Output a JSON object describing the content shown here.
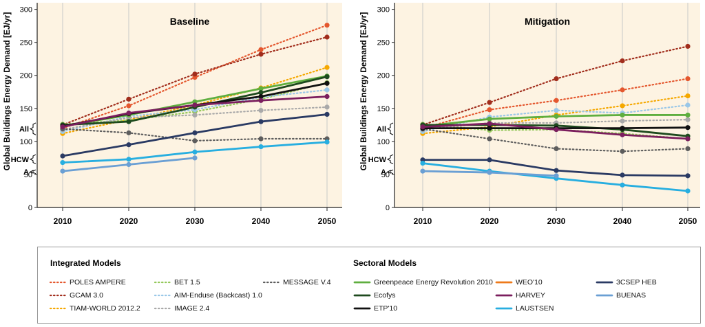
{
  "chart_data": [
    {
      "type": "line",
      "title": "Baseline",
      "ylabel": "Global Buildings Energy Demand [EJ/yr]",
      "ylim": [
        0,
        310
      ],
      "x": [
        2010,
        2020,
        2030,
        2040,
        2050
      ],
      "yticks": [
        "0",
        "50",
        "100",
        "150",
        "200",
        "250",
        "300"
      ],
      "xticks": [
        "2010",
        "2020",
        "2030",
        "2040",
        "2050"
      ],
      "brackets": [
        {
          "label": "All",
          "from": 110,
          "to": 128
        },
        {
          "label": "HCW",
          "from": 66,
          "to": 80
        },
        {
          "label": "A",
          "from": 51,
          "to": 57
        }
      ],
      "series": [
        {
          "name": "POLES AMPERE",
          "values": [
            120,
            154,
            197,
            239,
            276
          ]
        },
        {
          "name": "GCAM 3.0",
          "values": [
            125,
            164,
            202,
            232,
            258
          ]
        },
        {
          "name": "TIAM-WORLD 2012.2",
          "values": [
            112,
            133,
            155,
            181,
            212
          ]
        },
        {
          "name": "BET 1.5",
          "values": [
            126,
            132,
            145,
            164,
            189
          ]
        },
        {
          "name": "AIM-Enduse (Backcast) 1.0",
          "values": [
            115,
            138,
            148,
            167,
            178
          ]
        },
        {
          "name": "IMAGE 2.4",
          "values": [
            118,
            136,
            140,
            147,
            152
          ]
        },
        {
          "name": "MESSAGE V.4",
          "values": [
            119,
            113,
            101,
            104,
            104
          ]
        },
        {
          "name": "Greenpeace Energy Revolution 2010",
          "values": [
            123,
            140,
            160,
            180,
            199
          ]
        },
        {
          "name": "Ecofys",
          "values": [
            125,
            130,
            152,
            174,
            198
          ]
        },
        {
          "name": "ETP'10",
          "values": [
            123,
            142,
            155,
            168,
            188
          ]
        },
        {
          "name": "HARVEY",
          "values": [
            122,
            143,
            155,
            162,
            168
          ]
        },
        {
          "name": "3CSEP HEB",
          "values": [
            78,
            95,
            113,
            130,
            141
          ]
        },
        {
          "name": "LAUSTSEN",
          "values": [
            68,
            73,
            84,
            92,
            99
          ]
        },
        {
          "name": "BUENAS",
          "values": [
            55,
            65,
            75,
            null,
            null
          ]
        }
      ]
    },
    {
      "type": "line",
      "title": "Mitigation",
      "ylabel": "Global Buildings Energy Demand [EJ/yr]",
      "ylim": [
        0,
        310
      ],
      "x": [
        2010,
        2020,
        2030,
        2040,
        2050
      ],
      "yticks": [
        "0",
        "50",
        "100",
        "150",
        "200",
        "250",
        "300"
      ],
      "xticks": [
        "2010",
        "2020",
        "2030",
        "2040",
        "2050"
      ],
      "brackets": [
        {
          "label": "All",
          "from": 110,
          "to": 128
        },
        {
          "label": "HCW",
          "from": 66,
          "to": 80
        },
        {
          "label": "A",
          "from": 51,
          "to": 57
        }
      ],
      "series": [
        {
          "name": "POLES AMPERE",
          "values": [
            120,
            148,
            162,
            178,
            195
          ]
        },
        {
          "name": "GCAM 3.0",
          "values": [
            125,
            159,
            195,
            222,
            244
          ]
        },
        {
          "name": "TIAM-WORLD 2012.2",
          "values": [
            112,
            122,
            140,
            154,
            169
          ]
        },
        {
          "name": "BET 1.5",
          "values": [
            126,
            117,
            118,
            112,
            104
          ]
        },
        {
          "name": "AIM-Enduse (Backcast) 1.0",
          "values": [
            115,
            137,
            147,
            143,
            155
          ]
        },
        {
          "name": "IMAGE 2.4",
          "values": [
            118,
            128,
            128,
            131,
            133
          ]
        },
        {
          "name": "MESSAGE V.4",
          "values": [
            119,
            104,
            89,
            85,
            89
          ]
        },
        {
          "name": "Greenpeace Energy Revolution 2010",
          "values": [
            123,
            134,
            138,
            140,
            140
          ]
        },
        {
          "name": "Ecofys",
          "values": [
            125,
            125,
            124,
            118,
            108
          ]
        },
        {
          "name": "ETP'10",
          "values": [
            120,
            120,
            120,
            120,
            121
          ]
        },
        {
          "name": "HARVEY",
          "values": [
            122,
            127,
            118,
            110,
            104
          ]
        },
        {
          "name": "3CSEP HEB",
          "values": [
            72,
            72,
            56,
            49,
            48
          ]
        },
        {
          "name": "LAUSTSEN",
          "values": [
            67,
            55,
            44,
            34,
            25
          ]
        },
        {
          "name": "BUENAS",
          "values": [
            55,
            53,
            48,
            null,
            null
          ]
        }
      ]
    }
  ],
  "styles": {
    "POLES AMPERE": {
      "color": "#e4572e",
      "dash": true
    },
    "GCAM 3.0": {
      "color": "#a12d1c",
      "dash": true
    },
    "TIAM-WORLD 2012.2": {
      "color": "#f5a800",
      "dash": true
    },
    "BET 1.5": {
      "color": "#93c85a",
      "dash": true
    },
    "AIM-Enduse (Backcast) 1.0": {
      "color": "#99c7e8",
      "dash": true
    },
    "IMAGE 2.4": {
      "color": "#a9a9a9",
      "dash": true
    },
    "MESSAGE V.4": {
      "color": "#5d5d5d",
      "dash": true
    },
    "Greenpeace Energy Revolution 2010": {
      "color": "#5fae3f",
      "dash": false
    },
    "Ecofys": {
      "color": "#1e4a1e",
      "dash": false
    },
    "ETP'10": {
      "color": "#111111",
      "dash": false
    },
    "WEO'10": {
      "color": "#ee7a1a",
      "dash": false
    },
    "HARVEY": {
      "color": "#7b1e5e",
      "dash": false
    },
    "LAUSTSEN": {
      "color": "#27aee0",
      "dash": false
    },
    "3CSEP HEB": {
      "color": "#2a3a63",
      "dash": false
    },
    "BUENAS": {
      "color": "#6a9fd4",
      "dash": false
    }
  },
  "legend": {
    "integrated_title": "Integrated Models",
    "sectoral_title": "Sectoral Models",
    "items": [
      {
        "label": "POLES AMPERE",
        "style": "POLES AMPERE",
        "col": 0,
        "row": 0
      },
      {
        "label": "GCAM 3.0",
        "style": "GCAM 3.0",
        "col": 0,
        "row": 1
      },
      {
        "label": "TIAM-WORLD 2012.2",
        "style": "TIAM-WORLD 2012.2",
        "col": 0,
        "row": 2
      },
      {
        "label": "BET 1.5",
        "style": "BET 1.5",
        "col": 1,
        "row": 0
      },
      {
        "label": "AIM-Enduse (Backcast) 1.0",
        "style": "AIM-Enduse (Backcast) 1.0",
        "col": 1,
        "row": 1
      },
      {
        "label": "IMAGE 2.4",
        "style": "IMAGE 2.4",
        "col": 1,
        "row": 2
      },
      {
        "label": "MESSAGE V.4",
        "style": "MESSAGE V.4",
        "col": 2,
        "row": 0
      },
      {
        "label": "Greenpeace Energy Revolution 2010",
        "style": "Greenpeace Energy Revolution 2010",
        "col": 3,
        "row": 0
      },
      {
        "label": "Ecofys",
        "style": "Ecofys",
        "col": 3,
        "row": 1
      },
      {
        "label": "ETP'10",
        "style": "ETP'10",
        "col": 3,
        "row": 2
      },
      {
        "label": "WEO'10",
        "style": "WEO'10",
        "col": 4,
        "row": 0
      },
      {
        "label": "HARVEY",
        "style": "HARVEY",
        "col": 4,
        "row": 1
      },
      {
        "label": "LAUSTSEN",
        "style": "LAUSTSEN",
        "col": 4,
        "row": 2
      },
      {
        "label": "3CSEP HEB",
        "style": "3CSEP HEB",
        "col": 5,
        "row": 0
      },
      {
        "label": "BUENAS",
        "style": "BUENAS",
        "col": 5,
        "row": 1
      }
    ]
  },
  "colors": {
    "plot_background": "#fdf3e2",
    "axis": "#222222",
    "grid": "#c8c8c8"
  }
}
